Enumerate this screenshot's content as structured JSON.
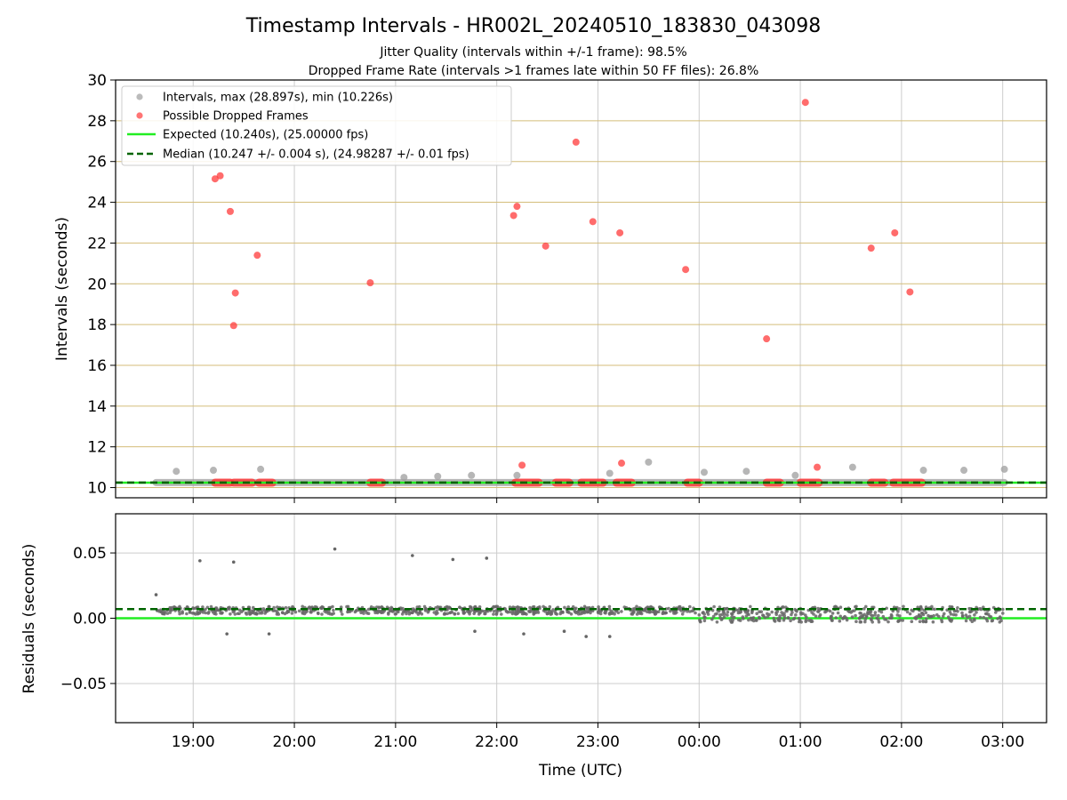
{
  "figure": {
    "title": "Timestamp Intervals - HR002L_20240510_183830_043098",
    "subtitle_1": "Jitter Quality (intervals within +/-1 frame): 98.5%",
    "subtitle_2": "Dropped Frame Rate (intervals >1 frames late within 50 FF files): 26.8%",
    "xlabel": "Time (UTC)"
  },
  "colors": {
    "intervals": "#9e9e9e",
    "dropped": "#ff3b3b",
    "expected": "#22ee22",
    "median": "#006400",
    "band_gridline": "#d4bd7a",
    "gridline": "#cccccc",
    "residual_points": "#666666"
  },
  "chart_data": [
    {
      "type": "scatter",
      "ylabel": "Intervals (seconds)",
      "xlim": [
        "18:14",
        "03:26"
      ],
      "ylim": [
        9.5,
        30
      ],
      "yticks": [
        10,
        12,
        14,
        16,
        18,
        20,
        22,
        24,
        26,
        28,
        30
      ],
      "xticks": [
        "19:00",
        "20:00",
        "21:00",
        "22:00",
        "23:00",
        "00:00",
        "01:00",
        "02:00",
        "03:00"
      ],
      "grid": true,
      "legend_position": "top-left",
      "legend": [
        "Intervals, max (28.897s), min (10.226s)",
        "Possible Dropped Frames",
        "Expected (10.240s), (25.00000 fps)",
        "Median (10.247 +/- 0.004 s), (24.98287 +/- 0.01 fps)"
      ],
      "expected_interval": 10.24,
      "median_interval": 10.247,
      "intervals_line_extent": [
        "18:38",
        "03:01"
      ],
      "interval_outliers": [
        {
          "t": "18:50",
          "y": 10.8
        },
        {
          "t": "19:12",
          "y": 10.85
        },
        {
          "t": "19:40",
          "y": 10.9
        },
        {
          "t": "21:05",
          "y": 10.5
        },
        {
          "t": "21:25",
          "y": 10.55
        },
        {
          "t": "21:45",
          "y": 10.6
        },
        {
          "t": "22:12",
          "y": 10.6
        },
        {
          "t": "23:07",
          "y": 10.7
        },
        {
          "t": "23:30",
          "y": 11.25
        },
        {
          "t": "00:03",
          "y": 10.75
        },
        {
          "t": "00:28",
          "y": 10.8
        },
        {
          "t": "00:57",
          "y": 10.6
        },
        {
          "t": "01:31",
          "y": 11.0
        },
        {
          "t": "02:13",
          "y": 10.85
        },
        {
          "t": "02:37",
          "y": 10.85
        },
        {
          "t": "03:01",
          "y": 10.9
        }
      ],
      "dropped_frames": [
        {
          "t": "19:13",
          "y": 25.15
        },
        {
          "t": "19:16",
          "y": 25.3
        },
        {
          "t": "19:22",
          "y": 23.55
        },
        {
          "t": "19:24",
          "y": 17.95
        },
        {
          "t": "19:25",
          "y": 19.55
        },
        {
          "t": "19:38",
          "y": 21.4
        },
        {
          "t": "20:45",
          "y": 20.05
        },
        {
          "t": "22:10",
          "y": 23.35
        },
        {
          "t": "22:12",
          "y": 23.8
        },
        {
          "t": "22:15",
          "y": 11.1
        },
        {
          "t": "22:29",
          "y": 21.85
        },
        {
          "t": "22:47",
          "y": 26.95
        },
        {
          "t": "22:57",
          "y": 23.05
        },
        {
          "t": "23:13",
          "y": 22.5
        },
        {
          "t": "23:14",
          "y": 11.2
        },
        {
          "t": "23:52",
          "y": 20.7
        },
        {
          "t": "00:40",
          "y": 17.3
        },
        {
          "t": "01:03",
          "y": 28.9
        },
        {
          "t": "01:10",
          "y": 11.0
        },
        {
          "t": "01:42",
          "y": 21.75
        },
        {
          "t": "01:56",
          "y": 22.5
        },
        {
          "t": "02:05",
          "y": 19.6
        }
      ],
      "dropped_clusters_at_baseline": [
        [
          "19:13",
          "19:22"
        ],
        [
          "19:24",
          "19:35"
        ],
        [
          "19:39",
          "19:47"
        ],
        [
          "20:45",
          "20:52"
        ],
        [
          "22:11",
          "22:25"
        ],
        [
          "22:35",
          "22:43"
        ],
        [
          "22:50",
          "23:03"
        ],
        [
          "23:11",
          "23:20"
        ],
        [
          "23:53",
          "24:00"
        ],
        [
          "00:40",
          "00:48"
        ],
        [
          "01:00",
          "01:11"
        ],
        [
          "01:42",
          "01:50"
        ],
        [
          "01:55",
          "02:12"
        ]
      ]
    },
    {
      "type": "scatter",
      "ylabel": "Residuals (seconds)",
      "xlim": [
        "18:14",
        "03:26"
      ],
      "ylim": [
        -0.08,
        0.08
      ],
      "yticks": [
        -0.05,
        0.0,
        0.05
      ],
      "ytick_labels": [
        "−0.05",
        "0.00",
        "0.05"
      ],
      "xticks": [
        "19:00",
        "20:00",
        "21:00",
        "22:00",
        "23:00",
        "00:00",
        "01:00",
        "02:00",
        "03:00"
      ],
      "xtick_labels": [
        "19:00",
        "20:00",
        "21:00",
        "22:00",
        "23:00",
        "00:00",
        "01:00",
        "02:00",
        "03:00"
      ],
      "grid": true,
      "expected_residual": 0.0,
      "median_residual": 0.007,
      "outliers": [
        {
          "t": "18:38",
          "y": 0.018
        },
        {
          "t": "19:04",
          "y": 0.044
        },
        {
          "t": "19:24",
          "y": 0.043
        },
        {
          "t": "20:24",
          "y": 0.053
        },
        {
          "t": "21:10",
          "y": 0.048
        },
        {
          "t": "21:34",
          "y": 0.045
        },
        {
          "t": "21:54",
          "y": 0.046
        },
        {
          "t": "22:53",
          "y": -0.014
        },
        {
          "t": "23:07",
          "y": -0.014
        },
        {
          "t": "19:20",
          "y": -0.012
        },
        {
          "t": "19:45",
          "y": -0.012
        },
        {
          "t": "21:47",
          "y": -0.01
        },
        {
          "t": "22:16",
          "y": -0.012
        },
        {
          "t": "22:40",
          "y": -0.01
        }
      ],
      "bands": [
        {
          "from": "18:38",
          "to": "23:58",
          "center": 0.006,
          "spread": 0.003
        },
        {
          "from": "00:00",
          "to": "03:01",
          "center": 0.003,
          "spread": 0.006
        }
      ]
    }
  ]
}
